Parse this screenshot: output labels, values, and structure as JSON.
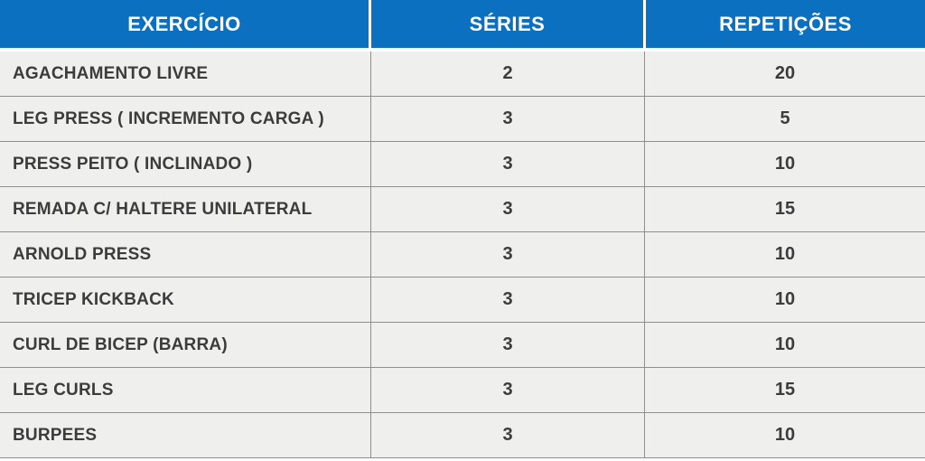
{
  "table": {
    "columns": [
      {
        "id": "exercicio",
        "label": "EXERCÍCIO"
      },
      {
        "id": "series",
        "label": "SÉRIES"
      },
      {
        "id": "repeticoes",
        "label": "REPETIÇÕES"
      }
    ],
    "rows": [
      {
        "exercicio": "AGACHAMENTO LIVRE",
        "series": "2",
        "repeticoes": "20"
      },
      {
        "exercicio": "LEG PRESS ( INCREMENTO CARGA )",
        "series": "3",
        "repeticoes": "5"
      },
      {
        "exercicio": "PRESS PEITO ( INCLINADO )",
        "series": "3",
        "repeticoes": "10"
      },
      {
        "exercicio": "REMADA C/ HALTERE UNILATERAL",
        "series": "3",
        "repeticoes": "15"
      },
      {
        "exercicio": "ARNOLD PRESS",
        "series": "3",
        "repeticoes": "10"
      },
      {
        "exercicio": "TRICEP KICKBACK",
        "series": "3",
        "repeticoes": "10"
      },
      {
        "exercicio": "CURL DE BICEP (BARRA)",
        "series": "3",
        "repeticoes": "10"
      },
      {
        "exercicio": "LEG CURLS",
        "series": "3",
        "repeticoes": "15"
      },
      {
        "exercicio": "BURPEES",
        "series": "3",
        "repeticoes": "10"
      }
    ]
  },
  "colors": {
    "header_bg": "#0b70c0",
    "header_text": "#ffffff",
    "row_bg": "#efefed",
    "grid_line": "#8f8f8f",
    "body_text": "#3c3c3c",
    "divider_white": "#ffffff"
  }
}
